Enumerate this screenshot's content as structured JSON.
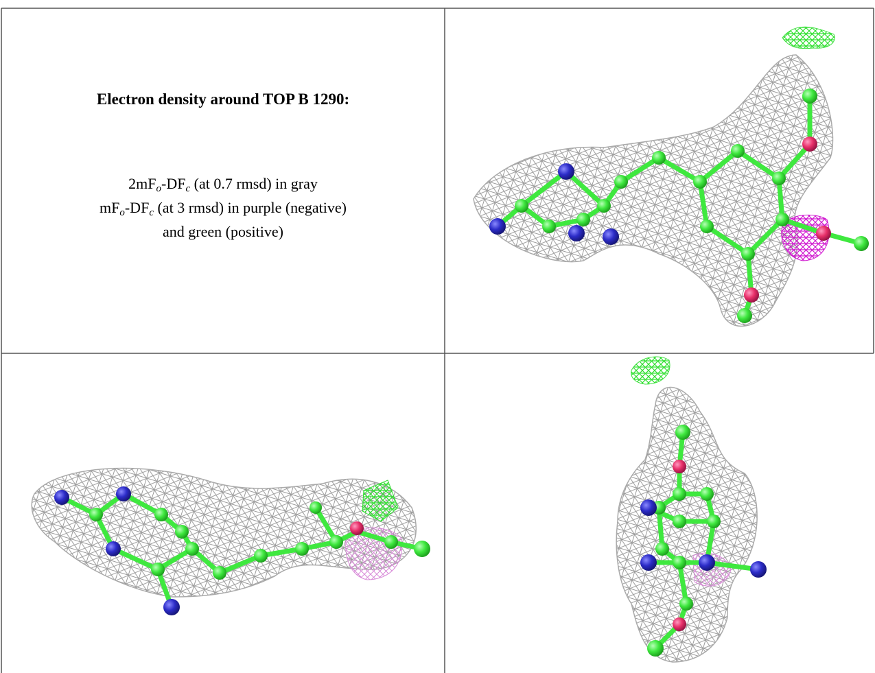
{
  "header": {
    "title": "Electron density around TOP B 1290:"
  },
  "legend": {
    "lines": [
      [
        "2mF",
        "o",
        "-DF",
        "c",
        " (at 0.7 rmsd) in gray"
      ],
      [
        "mF",
        "o",
        "-DF",
        "c",
        " (at 3 rmsd) in purple (negative)"
      ],
      [
        "and green (positive)"
      ]
    ]
  }
}
